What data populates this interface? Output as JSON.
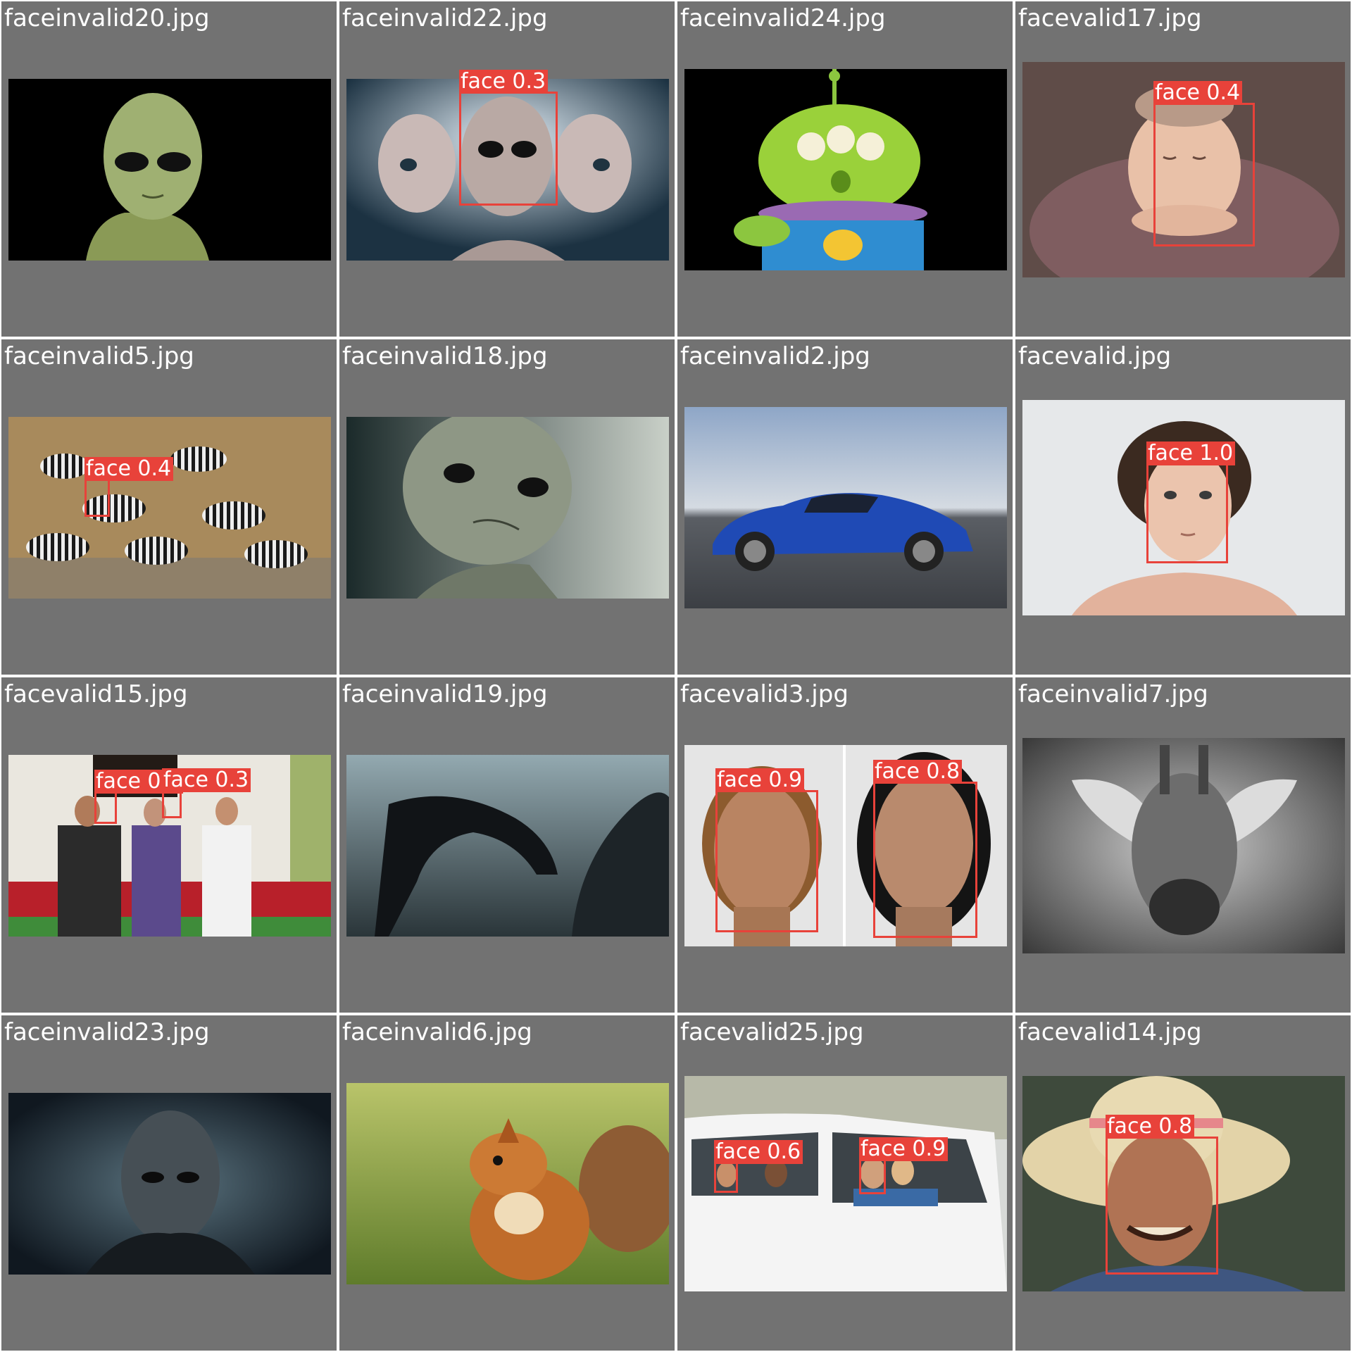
{
  "tiles": [
    {
      "title": "faceinvalid20.jpg",
      "scene": "alien-green",
      "detections": []
    },
    {
      "title": "faceinvalid22.jpg",
      "scene": "alien-trio",
      "detections": [
        {
          "label": "face 0.3"
        }
      ]
    },
    {
      "title": "faceinvalid24.jpg",
      "scene": "toy-alien",
      "detections": []
    },
    {
      "title": "facevalid17.jpg",
      "scene": "baby",
      "detections": [
        {
          "label": "face 0.4"
        }
      ]
    },
    {
      "title": "faceinvalid5.jpg",
      "scene": "zebras",
      "detections": [
        {
          "label": "face 0.4"
        }
      ]
    },
    {
      "title": "faceinvalid18.jpg",
      "scene": "alien-grey",
      "detections": []
    },
    {
      "title": "faceinvalid2.jpg",
      "scene": "blue-car",
      "detections": []
    },
    {
      "title": "facevalid.jpg",
      "scene": "boy",
      "detections": [
        {
          "label": "face 1.0"
        }
      ]
    },
    {
      "title": "facevalid15.jpg",
      "scene": "three-people",
      "detections": [
        {
          "label": "face 0.8"
        },
        {
          "label": "face 0.3"
        }
      ]
    },
    {
      "title": "faceinvalid19.jpg",
      "scene": "xenomorph",
      "detections": []
    },
    {
      "title": "facevalid3.jpg",
      "scene": "two-women",
      "detections": [
        {
          "label": "face 0.9"
        },
        {
          "label": "face 0.8"
        }
      ]
    },
    {
      "title": "faceinvalid7.jpg",
      "scene": "giraffe",
      "detections": []
    },
    {
      "title": "faceinvalid23.jpg",
      "scene": "dark-alien",
      "detections": []
    },
    {
      "title": "faceinvalid6.jpg",
      "scene": "squirrel",
      "detections": []
    },
    {
      "title": "facevalid25.jpg",
      "scene": "car-family",
      "detections": [
        {
          "label": "face 0.6"
        },
        {
          "label": "face 0.9"
        }
      ]
    },
    {
      "title": "facevalid14.jpg",
      "scene": "old-man-hat",
      "detections": [
        {
          "label": "face 0.8"
        }
      ]
    }
  ],
  "colors": {
    "tile_bg": "#727272",
    "box": "#e8423a",
    "title_text": "#ffffff"
  }
}
